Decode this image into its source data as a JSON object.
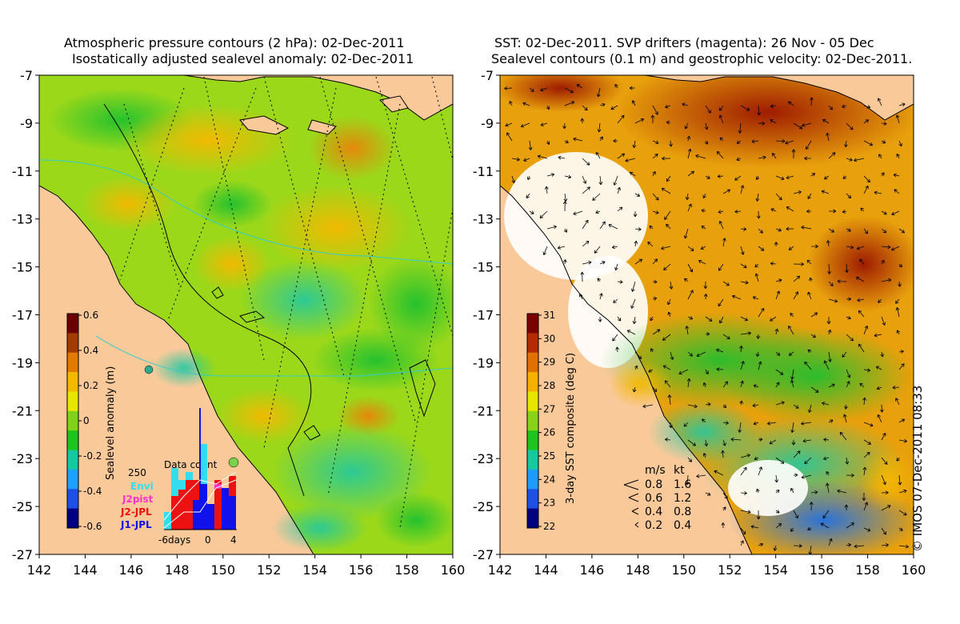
{
  "left_panel": {
    "title_line1": "Atmospheric pressure contours (2 hPa): 02-Dec-2011",
    "title_line2": "Isostatically adjusted sealevel anomaly: 02-Dec-2011",
    "x_ticks": [
      "142",
      "144",
      "146",
      "148",
      "150",
      "152",
      "154",
      "156",
      "158",
      "160"
    ],
    "y_ticks": [
      "-7",
      "-9",
      "-11",
      "-13",
      "-15",
      "-17",
      "-19",
      "-21",
      "-23",
      "-25",
      "-27"
    ],
    "colorbar": {
      "label": "Sealevel anomaly (m)",
      "ticks": [
        "0.6",
        "0.4",
        "0.2",
        "0",
        "-0.2",
        "-0.4",
        "-0.6"
      ],
      "colors": [
        "#6b0000",
        "#a33a00",
        "#e07a00",
        "#f5b800",
        "#e6e600",
        "#7fd11a",
        "#1ec41e",
        "#14c8a0",
        "#1ea0ff",
        "#1e50e6",
        "#000080"
      ]
    },
    "data_count": {
      "title": "Data count",
      "y_max_label": "250",
      "x_labels": [
        "-6days",
        "0",
        "4"
      ],
      "legend": [
        {
          "name": "Envi",
          "color": "#33ddee"
        },
        {
          "name": "J2pist",
          "color": "#ff33cc"
        },
        {
          "name": "J2-JPL",
          "color": "#ee1111"
        },
        {
          "name": "J1-JPL",
          "color": "#1111ee"
        }
      ]
    }
  },
  "right_panel": {
    "title_line1": "SST: 02-Dec-2011. SVP drifters (magenta): 26 Nov - 05 Dec",
    "title_line2": "Sealevel contours (0.1 m) and geostrophic velocity: 02-Dec-2011.",
    "x_ticks": [
      "142",
      "144",
      "146",
      "148",
      "150",
      "152",
      "154",
      "156",
      "158",
      "160"
    ],
    "y_ticks": [
      "-7",
      "-9",
      "-11",
      "-13",
      "-15",
      "-17",
      "-19",
      "-21",
      "-23",
      "-25",
      "-27"
    ],
    "colorbar": {
      "label": "3-day SST composite (deg C)",
      "ticks": [
        "31",
        "30",
        "29",
        "28",
        "27",
        "26",
        "25",
        "24",
        "23",
        "22"
      ],
      "colors": [
        "#7a0000",
        "#b52a00",
        "#e07000",
        "#f5b000",
        "#e6e600",
        "#8ad21a",
        "#1ec41e",
        "#14c8a0",
        "#1e9bff",
        "#1e50e6",
        "#000080"
      ]
    },
    "velocity_legend": {
      "header_ms": "m/s",
      "header_kt": "kt",
      "rows": [
        {
          "ms": "0.8",
          "kt": "1.6"
        },
        {
          "ms": "0.6",
          "kt": "1.2"
        },
        {
          "ms": "0.4",
          "kt": "0.8"
        },
        {
          "ms": "0.2",
          "kt": "0.4"
        }
      ]
    }
  },
  "credit": "© IMOS 07-Dec-2011 08:33",
  "colors": {
    "land": "#f9c99a",
    "coast": "#000000",
    "pressure_contour": "#000000",
    "isobath": "#33cccc"
  }
}
